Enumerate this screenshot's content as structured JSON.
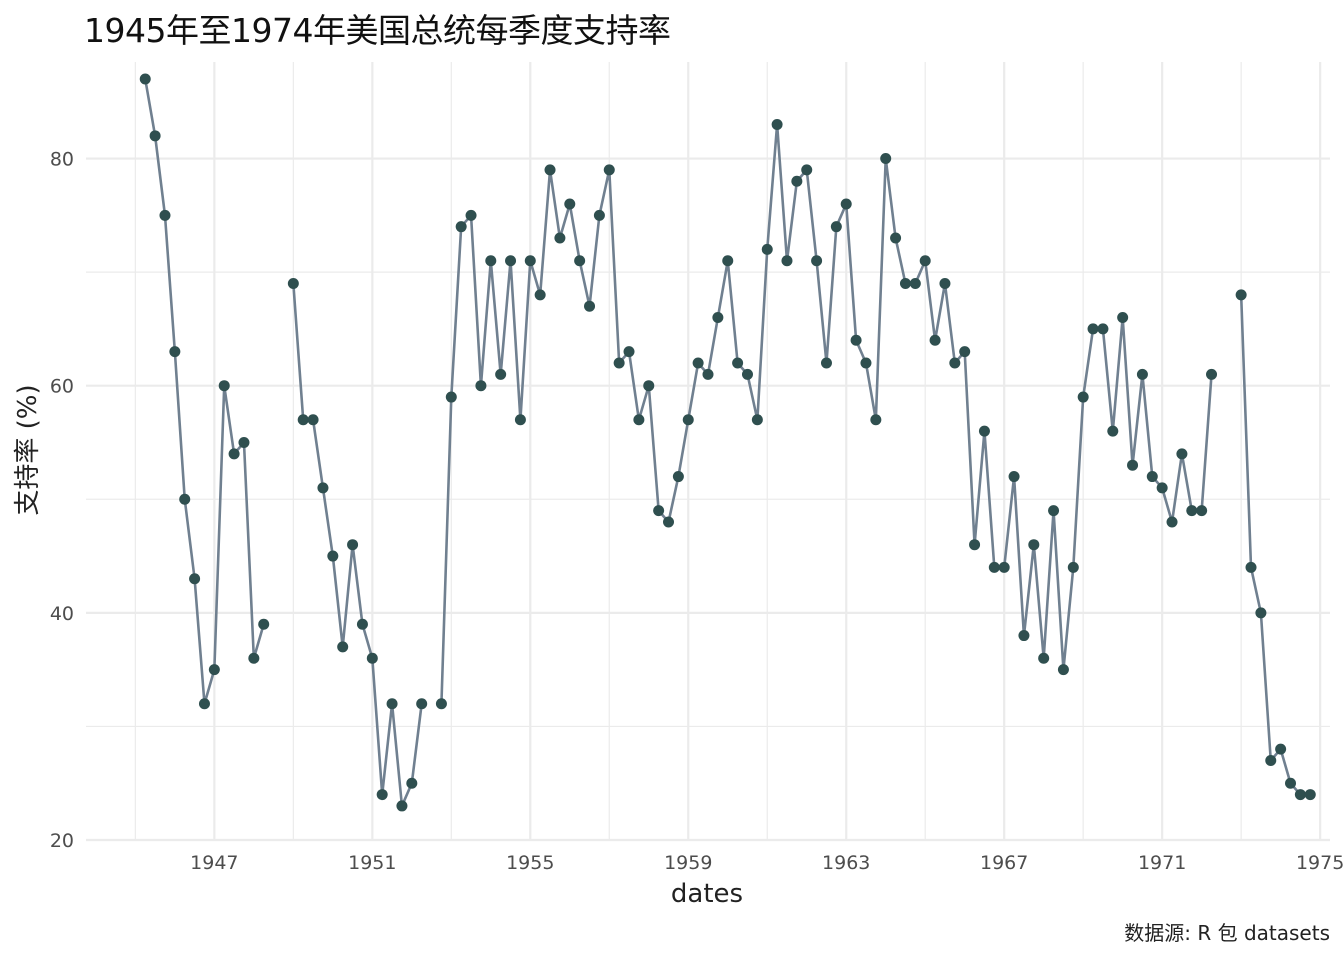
{
  "title": "1945年至1974年美国总统每季度支持率",
  "caption": "数据源: R 包 datasets",
  "colors": {
    "line": "#708090",
    "point": "#2f4f4f",
    "grid": "#ebebeb"
  },
  "chart_data": {
    "type": "line",
    "xlabel": "dates",
    "ylabel": "支持率 (%)",
    "x_ticks": [
      1947,
      1951,
      1955,
      1959,
      1963,
      1967,
      1971,
      1975
    ],
    "y_ticks": [
      20,
      40,
      60,
      80
    ],
    "xlim": [
      1943.75,
      1975.25
    ],
    "ylim": [
      20,
      88.5
    ],
    "grid": true,
    "x_start": 1945.0,
    "x_step": 0.25,
    "values": [
      null,
      87,
      82,
      75,
      63,
      50,
      43,
      32,
      35,
      60,
      54,
      55,
      36,
      39,
      null,
      null,
      69,
      57,
      57,
      51,
      45,
      37,
      46,
      39,
      36,
      24,
      32,
      23,
      25,
      32,
      null,
      32,
      59,
      74,
      75,
      60,
      71,
      61,
      71,
      57,
      71,
      68,
      79,
      73,
      76,
      71,
      67,
      75,
      79,
      62,
      63,
      57,
      60,
      49,
      48,
      52,
      57,
      62,
      61,
      66,
      71,
      62,
      61,
      57,
      72,
      83,
      71,
      78,
      79,
      71,
      62,
      74,
      76,
      64,
      62,
      57,
      80,
      73,
      69,
      69,
      71,
      64,
      69,
      62,
      63,
      46,
      56,
      44,
      44,
      52,
      38,
      46,
      36,
      49,
      35,
      44,
      59,
      65,
      65,
      56,
      66,
      53,
      61,
      52,
      51,
      48,
      54,
      49,
      49,
      61,
      null,
      null,
      68,
      44,
      40,
      27,
      28,
      25,
      24,
      24
    ]
  }
}
